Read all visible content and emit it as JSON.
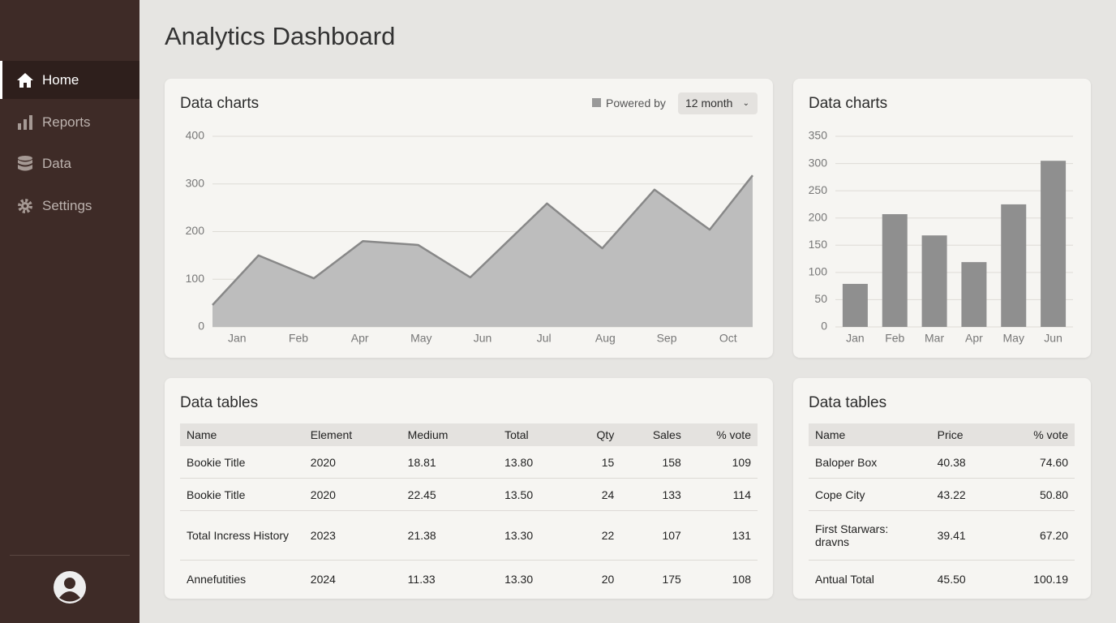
{
  "sidebar": {
    "nav": [
      "Home",
      "Reports",
      "Data",
      "Settings"
    ]
  },
  "header": {
    "title": "Analytics Dashboard"
  },
  "chart_data": [
    {
      "type": "area",
      "title": "Data charts",
      "legend_label": "Powered by",
      "period": "12 month",
      "x": [
        -0.4,
        0.35,
        1.25,
        2.05,
        2.95,
        3.8,
        5.05,
        5.95,
        6.8,
        7.7,
        8.4
      ],
      "values": [
        46,
        150,
        102,
        180,
        172,
        104,
        259,
        165,
        288,
        204,
        318
      ],
      "xlim": [
        -0.4,
        8.4
      ],
      "xticks": [
        {
          "value": 0,
          "label": "Jan"
        },
        {
          "value": 1,
          "label": "Feb"
        },
        {
          "value": 2,
          "label": "Apr"
        },
        {
          "value": 3,
          "label": "May"
        },
        {
          "value": 4,
          "label": "Jun"
        },
        {
          "value": 5,
          "label": "Jul"
        },
        {
          "value": 6,
          "label": "Aug"
        },
        {
          "value": 7,
          "label": "Sep"
        },
        {
          "value": 8,
          "label": "Oct"
        }
      ],
      "ylim": [
        0,
        400
      ],
      "yticks": [
        0,
        100,
        200,
        300,
        400
      ],
      "grid": true,
      "color": "#bdbdbd",
      "line_color": "#888888"
    },
    {
      "type": "bar",
      "title": "Data charts",
      "categories": [
        "Jan",
        "Feb",
        "Mar",
        "Apr",
        "May",
        "Jun"
      ],
      "values": [
        79,
        207,
        168,
        119,
        225,
        305
      ],
      "ylim": [
        0,
        350
      ],
      "yticks": [
        0,
        50,
        100,
        150,
        200,
        250,
        300,
        350
      ],
      "grid": true,
      "color": "#8f8f8f"
    }
  ],
  "tables": [
    {
      "title": "Data tables",
      "columns": [
        "Name",
        "Element",
        "Medium",
        "Total",
        "Qty",
        "Sales",
        "% vote"
      ],
      "rows": [
        [
          "Bookie Title",
          "2020",
          "18.81",
          "13.80",
          "15",
          "158",
          "109"
        ],
        [
          "Bookie Title",
          "2020",
          "22.45",
          "13.50",
          "24",
          "133",
          "114"
        ],
        [
          "Total Incress History",
          "2023",
          "21.38",
          "13.30",
          "22",
          "107",
          "131"
        ],
        [
          "Annefutities",
          "2024",
          "11.33",
          "13.30",
          "20",
          "175",
          "108"
        ]
      ]
    },
    {
      "title": "Data tables",
      "columns": [
        "Name",
        "Price",
        "% vote"
      ],
      "rows": [
        [
          "Baloper Box",
          "40.38",
          "74.60"
        ],
        [
          "Cope City",
          "43.22",
          "50.80"
        ],
        [
          "First Starwars: dravns",
          "39.41",
          "67.20"
        ],
        [
          "Antual Total",
          "45.50",
          "100.19"
        ]
      ]
    }
  ]
}
